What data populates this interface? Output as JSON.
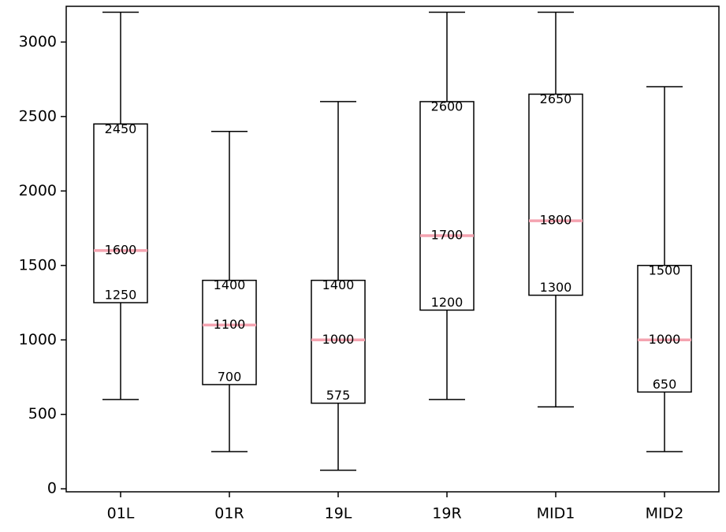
{
  "chart_data": {
    "type": "boxplot",
    "title": "",
    "xlabel": "",
    "ylabel": "",
    "ylim": [
      -20,
      3240
    ],
    "yticks": [
      0,
      500,
      1000,
      1500,
      2000,
      2500,
      3000
    ],
    "grid": false,
    "colors": {
      "box": "#000000",
      "median": "#f4a3b0"
    },
    "categories": [
      "01L",
      "01R",
      "19L",
      "19R",
      "MID1",
      "MID2"
    ],
    "boxes": [
      {
        "label": "01L",
        "whisker_low": 600,
        "q1": 1250,
        "median": 1600,
        "q3": 2450,
        "whisker_high": 3200
      },
      {
        "label": "01R",
        "whisker_low": 250,
        "q1": 700,
        "median": 1100,
        "q3": 1400,
        "whisker_high": 2400
      },
      {
        "label": "19L",
        "whisker_low": 125,
        "q1": 575,
        "median": 1000,
        "q3": 1400,
        "whisker_high": 2600
      },
      {
        "label": "19R",
        "whisker_low": 600,
        "q1": 1200,
        "median": 1700,
        "q3": 2600,
        "whisker_high": 3200
      },
      {
        "label": "MID1",
        "whisker_low": 550,
        "q1": 1300,
        "median": 1800,
        "q3": 2650,
        "whisker_high": 3200
      },
      {
        "label": "MID2",
        "whisker_low": 250,
        "q1": 650,
        "median": 1000,
        "q3": 1500,
        "whisker_high": 2700
      }
    ]
  }
}
